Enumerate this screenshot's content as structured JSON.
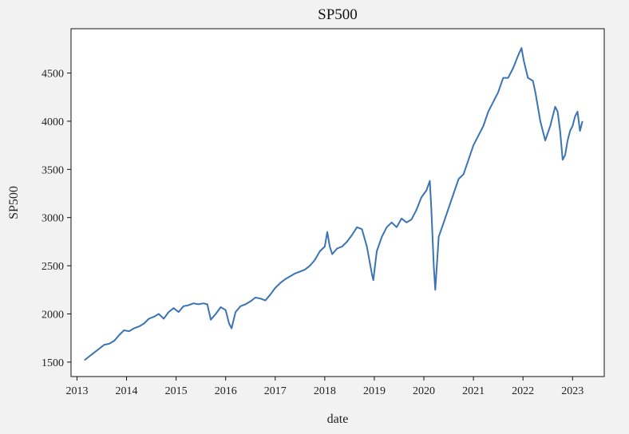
{
  "chart_data": {
    "type": "line",
    "title": "SP500",
    "xlabel": "date",
    "ylabel": "SP500",
    "xlim": [
      2012.88,
      2023.64
    ],
    "ylim": [
      1350,
      4960
    ],
    "x_ticks": [
      2013,
      2014,
      2015,
      2016,
      2017,
      2018,
      2019,
      2020,
      2021,
      2022,
      2023
    ],
    "y_ticks": [
      1500,
      2000,
      2500,
      3000,
      3500,
      4000,
      4500
    ],
    "grid": false,
    "line_color": "#3a74b4",
    "series": [
      {
        "name": "",
        "x": [
          2013.15,
          2013.25,
          2013.35,
          2013.45,
          2013.55,
          2013.65,
          2013.75,
          2013.85,
          2013.95,
          2014.05,
          2014.15,
          2014.25,
          2014.35,
          2014.45,
          2014.55,
          2014.65,
          2014.75,
          2014.85,
          2014.95,
          2015.05,
          2015.15,
          2015.25,
          2015.35,
          2015.45,
          2015.55,
          2015.63,
          2015.7,
          2015.8,
          2015.9,
          2016.0,
          2016.07,
          2016.12,
          2016.2,
          2016.3,
          2016.4,
          2016.5,
          2016.6,
          2016.7,
          2016.8,
          2016.9,
          2017.0,
          2017.1,
          2017.2,
          2017.3,
          2017.4,
          2017.5,
          2017.6,
          2017.7,
          2017.8,
          2017.9,
          2018.0,
          2018.05,
          2018.1,
          2018.15,
          2018.25,
          2018.35,
          2018.45,
          2018.55,
          2018.65,
          2018.75,
          2018.85,
          2018.95,
          2018.98,
          2019.05,
          2019.15,
          2019.25,
          2019.35,
          2019.45,
          2019.55,
          2019.65,
          2019.75,
          2019.85,
          2019.95,
          2020.05,
          2020.12,
          2020.15,
          2020.2,
          2020.23,
          2020.3,
          2020.4,
          2020.5,
          2020.6,
          2020.7,
          2020.8,
          2020.9,
          2021.0,
          2021.1,
          2021.2,
          2021.3,
          2021.4,
          2021.5,
          2021.6,
          2021.7,
          2021.8,
          2021.9,
          2021.97,
          2022.02,
          2022.1,
          2022.2,
          2022.25,
          2022.35,
          2022.45,
          2022.55,
          2022.65,
          2022.7,
          2022.75,
          2022.8,
          2022.85,
          2022.9,
          2022.95,
          2023.0,
          2023.05,
          2023.1,
          2023.15,
          2023.2
        ],
        "values": [
          1520,
          1560,
          1600,
          1640,
          1680,
          1690,
          1720,
          1780,
          1830,
          1820,
          1850,
          1870,
          1900,
          1950,
          1970,
          2000,
          1950,
          2020,
          2060,
          2020,
          2080,
          2090,
          2110,
          2100,
          2110,
          2100,
          1940,
          2000,
          2070,
          2040,
          1900,
          1850,
          2020,
          2080,
          2100,
          2130,
          2170,
          2160,
          2140,
          2200,
          2270,
          2320,
          2360,
          2390,
          2420,
          2440,
          2460,
          2500,
          2560,
          2650,
          2700,
          2850,
          2700,
          2620,
          2680,
          2700,
          2750,
          2820,
          2900,
          2880,
          2700,
          2420,
          2350,
          2650,
          2800,
          2900,
          2950,
          2900,
          2990,
          2950,
          2980,
          3080,
          3210,
          3280,
          3380,
          3100,
          2500,
          2250,
          2800,
          2950,
          3100,
          3250,
          3400,
          3450,
          3600,
          3750,
          3850,
          3950,
          4100,
          4200,
          4300,
          4450,
          4450,
          4550,
          4680,
          4760,
          4620,
          4450,
          4420,
          4300,
          4000,
          3800,
          3950,
          4150,
          4100,
          3900,
          3600,
          3650,
          3800,
          3900,
          3950,
          4050,
          4100,
          3900,
          4000
        ]
      }
    ]
  }
}
